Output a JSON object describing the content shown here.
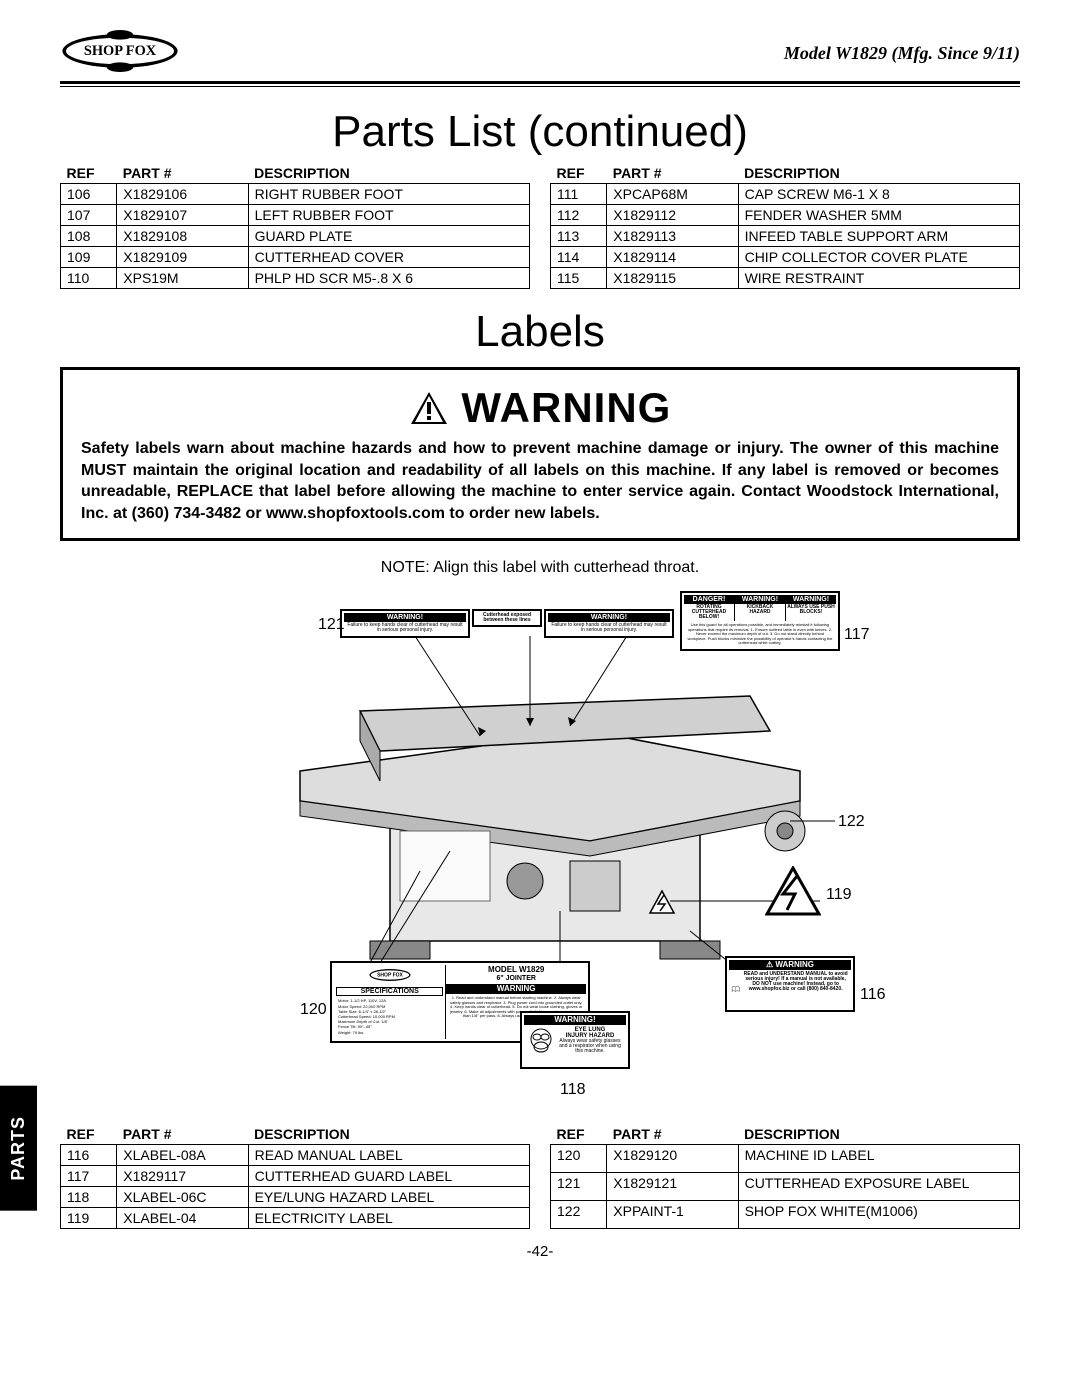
{
  "header": {
    "logo_text": "SHOP FOX",
    "model": "Model W1829 (Mfg. Since 9/11)"
  },
  "titles": {
    "parts_list": "Parts List (continued)",
    "labels": "Labels"
  },
  "table_headers": {
    "ref": "REF",
    "part": "PART #",
    "desc": "DESCRIPTION"
  },
  "parts_top_left": [
    {
      "ref": "106",
      "part": "X1829106",
      "desc": "RIGHT RUBBER FOOT"
    },
    {
      "ref": "107",
      "part": "X1829107",
      "desc": "LEFT RUBBER FOOT"
    },
    {
      "ref": "108",
      "part": "X1829108",
      "desc": "GUARD PLATE"
    },
    {
      "ref": "109",
      "part": "X1829109",
      "desc": "CUTTERHEAD COVER"
    },
    {
      "ref": "110",
      "part": "XPS19M",
      "desc": "PHLP HD SCR M5-.8 X 6"
    }
  ],
  "parts_top_right": [
    {
      "ref": "111",
      "part": "XPCAP68M",
      "desc": "CAP SCREW M6-1 X 8"
    },
    {
      "ref": "112",
      "part": "X1829112",
      "desc": "FENDER WASHER 5MM"
    },
    {
      "ref": "113",
      "part": "X1829113",
      "desc": "INFEED TABLE SUPPORT ARM"
    },
    {
      "ref": "114",
      "part": "X1829114",
      "desc": "CHIP COLLECTOR COVER PLATE"
    },
    {
      "ref": "115",
      "part": "X1829115",
      "desc": "WIRE RESTRAINT"
    }
  ],
  "parts_bottom_left": [
    {
      "ref": "116",
      "part": "XLABEL-08A",
      "desc": "READ MANUAL LABEL"
    },
    {
      "ref": "117",
      "part": "X1829117",
      "desc": "CUTTERHEAD GUARD LABEL"
    },
    {
      "ref": "118",
      "part": "XLABEL-06C",
      "desc": "EYE/LUNG HAZARD LABEL"
    },
    {
      "ref": "119",
      "part": "XLABEL-04",
      "desc": "ELECTRICITY LABEL"
    }
  ],
  "parts_bottom_right": [
    {
      "ref": "120",
      "part": "X1829120",
      "desc": "MACHINE ID LABEL"
    },
    {
      "ref": "121",
      "part": "X1829121",
      "desc": "CUTTERHEAD EXPOSURE LABEL"
    },
    {
      "ref": "122",
      "part": "XPPAINT-1",
      "desc": "SHOP FOX WHITE(M1006)"
    }
  ],
  "warning": {
    "heading": "WARNING",
    "text": "Safety labels warn about machine hazards and how to prevent machine damage or injury. The owner of this machine MUST maintain the original location and readability of all labels on this machine. If any label is removed or becomes unreadable, REPLACE that label before allowing the machine to enter service again. Contact Woodstock International, Inc. at (360) 734-3482 or www.shopfoxtools.com to order new labels."
  },
  "diagram": {
    "note": "NOTE: Align this label with cutterhead throat.",
    "callouts": {
      "c117": "117",
      "c118": "118",
      "c119": "119",
      "c120": "120",
      "c121": "121",
      "c122": "122",
      "c116": "116"
    },
    "labels_mini": {
      "model_title": "MODEL W1829",
      "model_sub": "6\" JOINTER",
      "specs": "SPECIFICATIONS",
      "warning_small": "WARNING!",
      "warning_caps": "WARNING",
      "danger": "DANGER!",
      "eye_lung1": "EYE LUNG",
      "eye_lung2": "INJURY HAZARD",
      "eye_lung3": "Always wear safety glasses and a respirator when using this machine.",
      "read1": "READ and UNDERSTAND MANUAL to avoid serious injury! If a manual is not available, DO NOT use machine! Instead, go to www.shopfox.biz or call (800) 840-8420.",
      "cutterhead_note": "Failure to keep hands clear of cutterhead may result in serious personal injury.",
      "throat_note": "Cutterhead exposed between these lines",
      "rotating": "ROTATING CUTTERHEAD BELOW!",
      "kickback": "KICKBACK HAZARD",
      "pushblocks": "ALWAYS USE PUSH BLOCKS!"
    }
  },
  "side_tab": "PARTS",
  "page_number": "-42-"
}
